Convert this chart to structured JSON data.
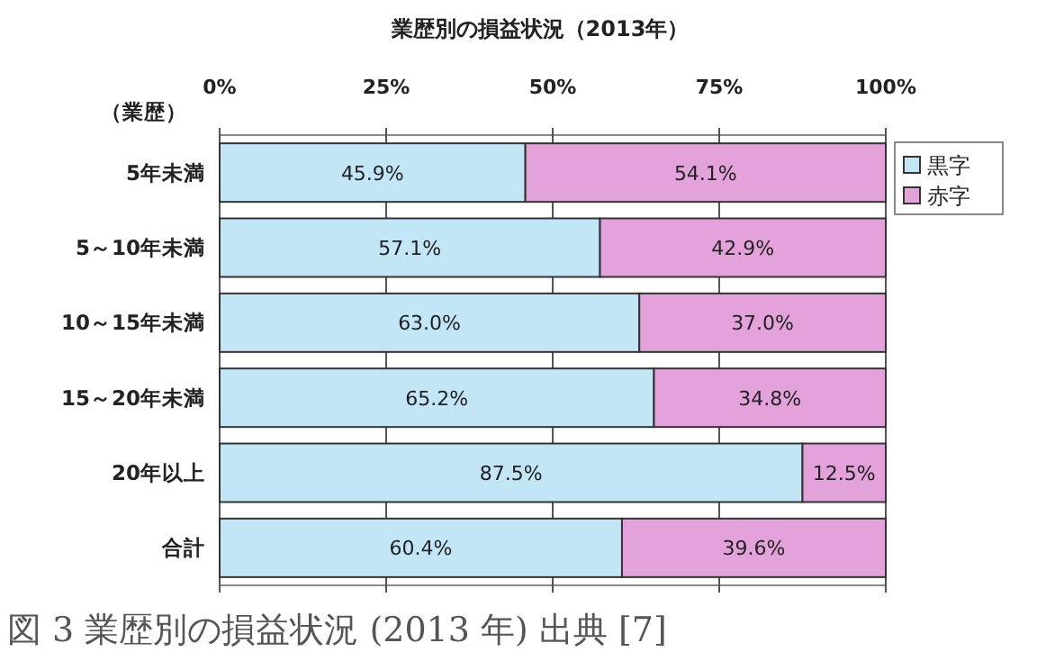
{
  "chart_data": {
    "type": "bar",
    "orientation": "horizontal",
    "stacked": true,
    "title": "業歴別の損益状況（2013年）",
    "ylabel": "（業歴）",
    "categories": [
      "5年未満",
      "5～10年未満",
      "10～15年未満",
      "15～20年未満",
      "20年以上",
      "合計"
    ],
    "series": [
      {
        "name": "黒字",
        "color": "#c2e6f6",
        "values": [
          45.9,
          57.1,
          63.0,
          65.2,
          87.5,
          60.4
        ],
        "value_labels": [
          "45.9%",
          "57.1%",
          "63.0%",
          "65.2%",
          "87.5%",
          "60.4%"
        ]
      },
      {
        "name": "赤字",
        "color": "#e3a3da",
        "values": [
          54.1,
          42.9,
          37.0,
          34.8,
          12.5,
          39.6
        ],
        "value_labels": [
          "54.1%",
          "42.9%",
          "37.0%",
          "34.8%",
          "12.5%",
          "39.6%"
        ]
      }
    ],
    "xlim": [
      0,
      100
    ],
    "xticks": [
      {
        "value": 0,
        "label": "0%"
      },
      {
        "value": 25,
        "label": "25%"
      },
      {
        "value": 50,
        "label": "50%"
      },
      {
        "value": 75,
        "label": "75%"
      },
      {
        "value": 100,
        "label": "100%"
      }
    ],
    "legend": "right",
    "grid": "x",
    "annotations": [
      "図 3 業歴別の損益状況 (2013 年) 出典 [7]"
    ]
  }
}
